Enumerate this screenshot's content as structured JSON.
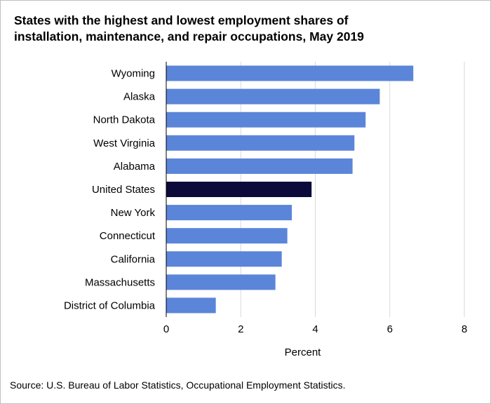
{
  "title": {
    "line1": "States with the highest and lowest employment  shares of",
    "line2": "installation, maintenance, and repair occupations, May 2019"
  },
  "source": "Source: U.S. Bureau of Labor Statistics, Occupational Employment  Statistics.",
  "colors": {
    "bar": "#5b85d9",
    "highlight": "#0b0a3a",
    "grid": "#d9d9d9",
    "axis": "#000000"
  },
  "chart_data": {
    "type": "bar",
    "orientation": "horizontal",
    "categories": [
      "Wyoming",
      "Alaska",
      "North Dakota",
      "West Virginia",
      "Alabama",
      "United States",
      "New York",
      "Connecticut",
      "California",
      "Massachusetts",
      "District of Columbia"
    ],
    "values": [
      6.63,
      5.73,
      5.35,
      5.05,
      5.0,
      3.9,
      3.37,
      3.25,
      3.1,
      2.93,
      1.33
    ],
    "highlight_category": "United States",
    "xlabel": "Percent",
    "ylabel": "",
    "xlim": [
      0,
      8
    ],
    "xticks": [
      "0",
      "2",
      "4",
      "6",
      "8"
    ],
    "grid": "vertical"
  }
}
